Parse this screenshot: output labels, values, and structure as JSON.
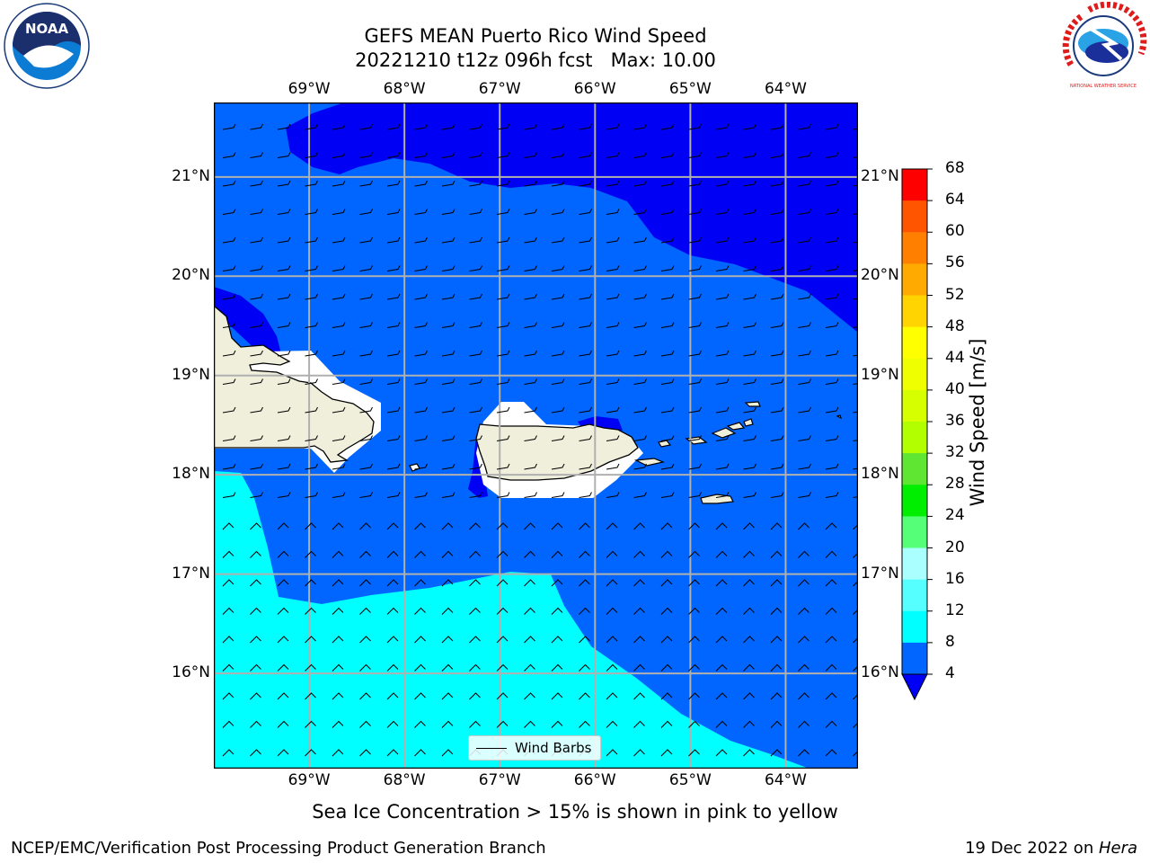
{
  "title": {
    "line1": "GEFS MEAN Puerto Rico Wind Speed",
    "line2": "20221210 t12z 096h fcst   Max: 10.00"
  },
  "map": {
    "lon_ticks": [
      "69°W",
      "68°W",
      "67°W",
      "66°W",
      "65°W",
      "64°W"
    ],
    "lat_ticks": [
      "21°N",
      "20°N",
      "19°N",
      "18°N",
      "17°N",
      "16°N"
    ],
    "lon_values": [
      -69,
      -68,
      -67,
      -66,
      -65,
      -64
    ],
    "lat_values": [
      21,
      20,
      19,
      18,
      17,
      16
    ],
    "extent": {
      "lon_min": -70,
      "lon_max": -63.25,
      "lat_min": 15.05,
      "lat_max": 21.75
    },
    "regions": [
      {
        "name": "wind-4-8",
        "color": "#0066ff"
      },
      {
        "name": "wind-below-4",
        "color": "#0000f5"
      },
      {
        "name": "wind-8-12",
        "color": "#00ffff"
      },
      {
        "name": "land",
        "color": "#efefdc"
      }
    ],
    "legend_label": "Wind Barbs"
  },
  "colorbar": {
    "title": "Wind Speed [m/s]",
    "labels": [
      "68",
      "64",
      "60",
      "56",
      "52",
      "48",
      "44",
      "40",
      "36",
      "32",
      "28",
      "24",
      "20",
      "16",
      "12",
      "8",
      "4"
    ],
    "colors": [
      "#ff0000",
      "#ff2200",
      "#ff5500",
      "#ff7f00",
      "#ffaa00",
      "#ffd400",
      "#ffff00",
      "#f0ff00",
      "#d6ff00",
      "#b2ff00",
      "#5fe632",
      "#00ee00",
      "#55ff77",
      "#aaffff",
      "#55ffff",
      "#00ffff",
      "#0066ff"
    ],
    "underflow_color": "#0000f5"
  },
  "subnote": "Sea Ice Concentration > 15% is shown in pink to yellow",
  "footer": {
    "left": "NCEP/EMC/Verification Post Processing Product Generation Branch",
    "right_prefix": "19 Dec 2022 on ",
    "right_host": "Hera"
  },
  "logos": {
    "left_text": "NOAA",
    "right_text": "NATIONAL WEATHER SERVICE"
  }
}
